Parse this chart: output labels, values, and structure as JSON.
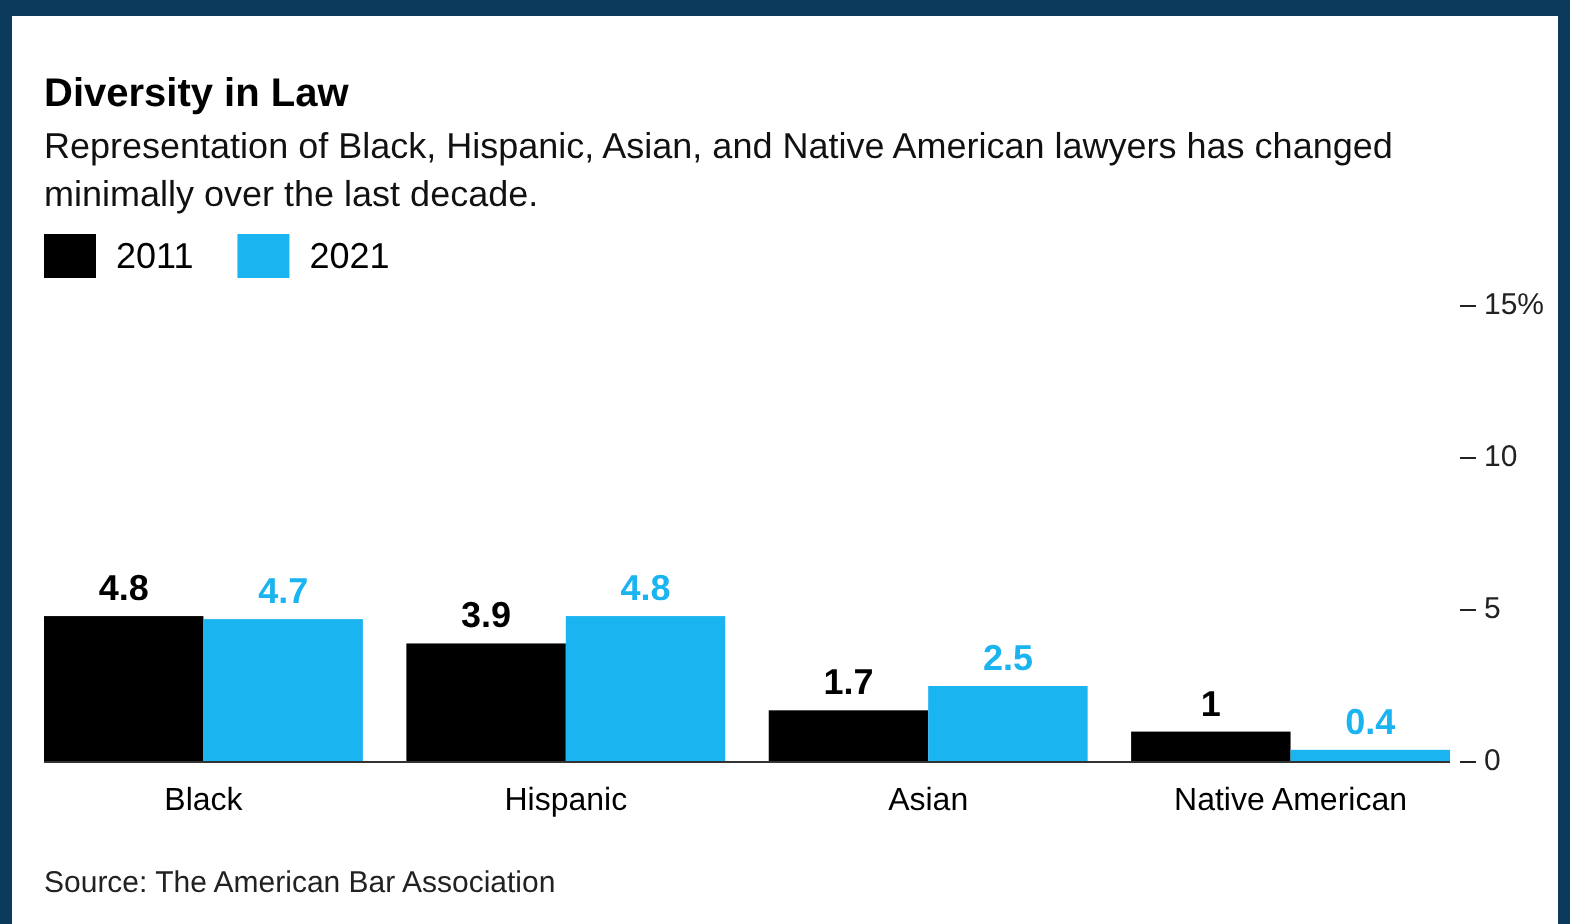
{
  "chart_data": {
    "type": "bar",
    "title": "Diversity in Law",
    "subtitle": "Representation of Black, Hispanic, Asian, and Native American lawyers has changed minimally over the last decade.",
    "categories": [
      "Black",
      "Hispanic",
      "Asian",
      "Native American"
    ],
    "series": [
      {
        "name": "2011",
        "color": "#000000",
        "values": [
          4.8,
          3.9,
          1.7,
          1
        ]
      },
      {
        "name": "2021",
        "color": "#1ab4f0",
        "values": [
          4.7,
          4.8,
          2.5,
          0.4
        ]
      }
    ],
    "ylim": [
      0,
      15
    ],
    "yticks": [
      0,
      5,
      10,
      {
        "value": 15,
        "label": "15%"
      }
    ],
    "data_labels": true,
    "legend": "top left",
    "grid": false,
    "annotations": [
      "Source: The American Bar Association"
    ]
  }
}
